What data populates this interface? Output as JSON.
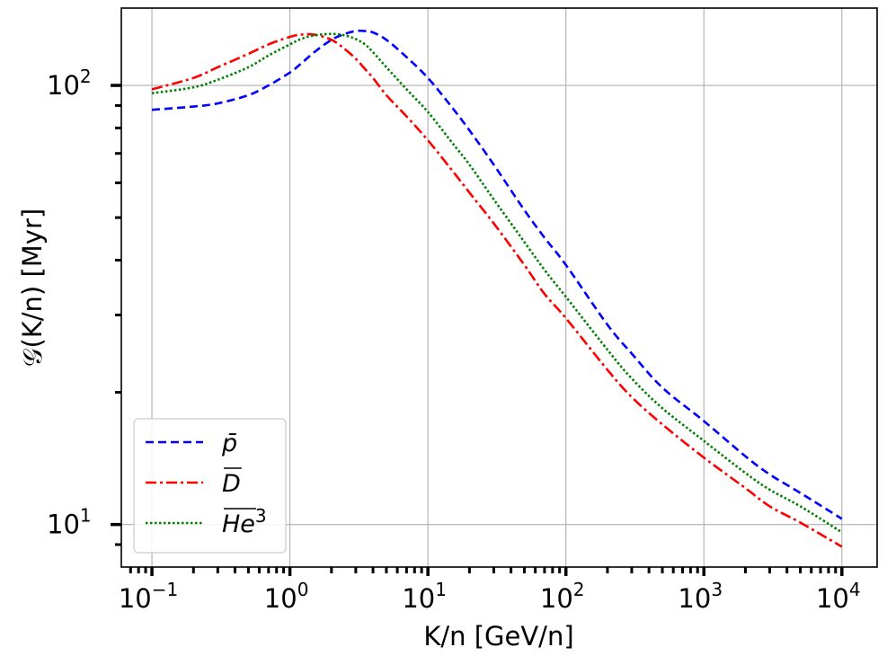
{
  "chart_data": {
    "type": "line",
    "xscale": "log",
    "yscale": "log",
    "xlim": [
      0.06,
      18000
    ],
    "ylim": [
      8.0,
      150
    ],
    "xlabel": "K/n [GeV/n]",
    "ylabel": "𝒢(K/n) [Myr]",
    "x_ticks": [
      {
        "base": "10",
        "exp": "−1",
        "value": 0.1
      },
      {
        "base": "10",
        "exp": "0",
        "value": 1
      },
      {
        "base": "10",
        "exp": "1",
        "value": 10
      },
      {
        "base": "10",
        "exp": "2",
        "value": 100
      },
      {
        "base": "10",
        "exp": "3",
        "value": 1000
      },
      {
        "base": "10",
        "exp": "4",
        "value": 10000
      }
    ],
    "y_ticks": [
      {
        "base": "10",
        "exp": "1",
        "value": 10
      },
      {
        "base": "10",
        "exp": "2",
        "value": 100
      }
    ],
    "grid": true,
    "legend_position": "lower-left",
    "x": [
      0.1,
      0.2,
      0.3,
      0.5,
      0.7,
      1,
      1.2,
      1.5,
      2,
      2.5,
      3,
      3.5,
      4,
      5,
      7,
      10,
      15,
      20,
      30,
      50,
      70,
      100,
      200,
      300,
      500,
      1000,
      2000,
      3000,
      5000,
      10000
    ],
    "series": [
      {
        "name": "p̄",
        "label_main": "p̄",
        "label_sup": "",
        "color": "#0000ff",
        "dash": "9,5",
        "values": [
          88,
          89.5,
          91,
          95,
          100,
          107,
          112,
          119,
          127,
          131,
          133,
          133,
          132,
          127,
          116,
          104,
          89,
          79,
          66,
          52,
          45,
          39,
          28.5,
          24.5,
          20.5,
          17.2,
          14.3,
          13.0,
          11.8,
          10.3
        ]
      },
      {
        "name": "D̄",
        "label_main": "D",
        "label_sup": "",
        "overline": true,
        "color": "#ff0000",
        "dash": "12,4,3,4",
        "values": [
          98,
          104,
          110,
          118,
          124,
          129,
          130.5,
          130.5,
          127,
          121,
          115,
          109,
          104,
          95,
          85,
          75,
          64,
          57,
          48.5,
          39,
          33.5,
          29.5,
          22.5,
          19.5,
          16.9,
          14.2,
          12.1,
          11.0,
          10.1,
          8.9
        ]
      },
      {
        "name": "He̅³",
        "label_main": "He",
        "label_sup": "3",
        "overline": true,
        "color": "#008000",
        "dash": "2.5,2.5",
        "values": [
          96,
          99,
          103,
          110,
          117,
          124,
          127.5,
          130,
          131,
          130,
          127.5,
          124,
          119,
          110,
          98,
          87,
          74,
          66,
          55,
          44,
          38,
          33,
          25,
          21.5,
          18.4,
          15.5,
          13.1,
          12.0,
          11.0,
          9.6
        ]
      }
    ]
  }
}
